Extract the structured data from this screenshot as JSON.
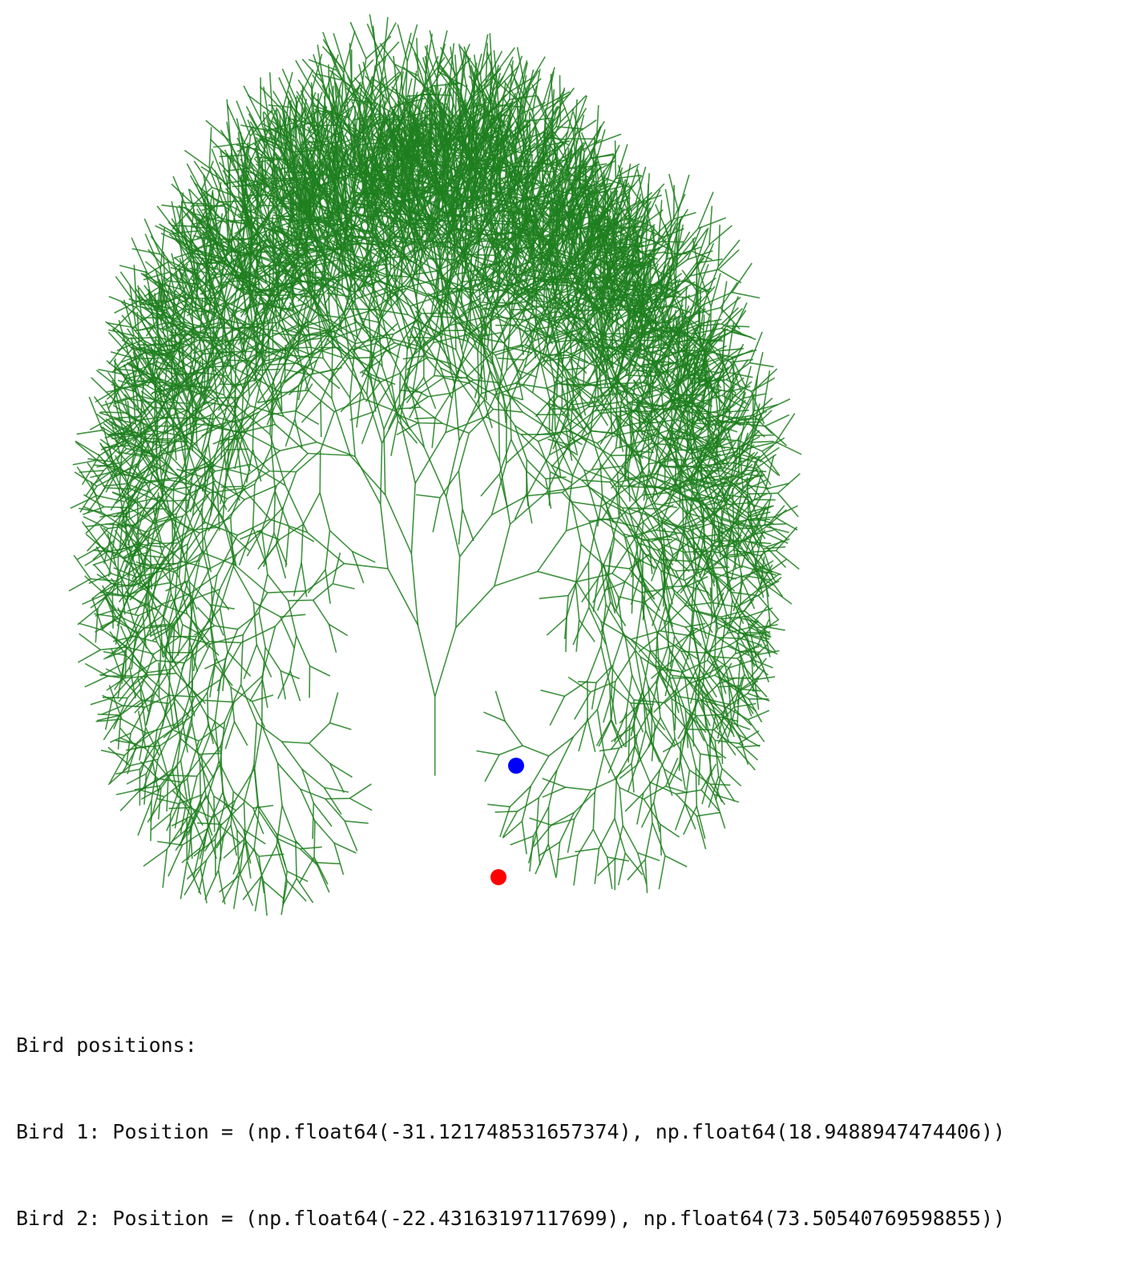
{
  "output": {
    "header": "Bird positions:",
    "lines": [
      "Bird 1: Position = (np.float64(-31.121748531657374), np.float64(18.9488947474406))",
      "Bird 2: Position = (np.float64(-22.43163197117699), np.float64(73.50540769598855))"
    ]
  },
  "colors": {
    "tree": "#1f7f1f",
    "bird1": "#0000ff",
    "bird2": "#ff0000",
    "text": "#111111",
    "background": "#ffffff"
  },
  "icons": {
    "bird1": "blue-dot-icon",
    "bird2": "red-dot-icon"
  }
}
